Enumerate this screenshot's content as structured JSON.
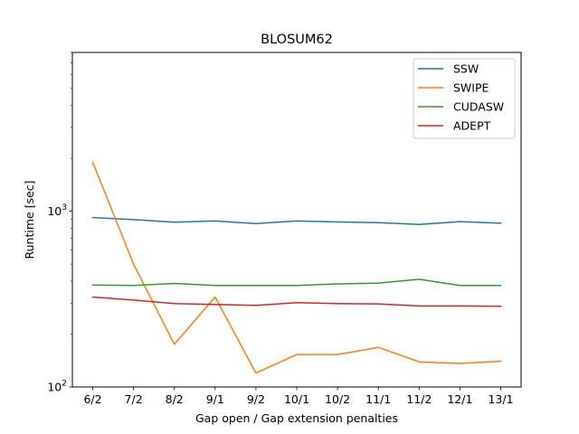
{
  "chart_data": {
    "type": "line",
    "title": "BLOSUM62",
    "xlabel": "Gap open / Gap extension penalties",
    "ylabel": "Runtime [sec]",
    "yscale": "log",
    "ylim": [
      100,
      8000
    ],
    "categories": [
      "6/2",
      "7/2",
      "8/2",
      "9/1",
      "9/2",
      "10/1",
      "10/2",
      "11/1",
      "11/2",
      "12/1",
      "13/1"
    ],
    "y_ticks": [
      {
        "value": 100,
        "base": "10",
        "exp": "2"
      },
      {
        "value": 1000,
        "base": "10",
        "exp": "3"
      }
    ],
    "legend_position": "upper right",
    "grid": false,
    "series": [
      {
        "name": "SSW",
        "color": "#1f77b4",
        "values": [
          920,
          895,
          865,
          880,
          850,
          880,
          868,
          860,
          840,
          872,
          855
        ]
      },
      {
        "name": "SWIPE",
        "color": "#ff7f0e",
        "values": [
          1900,
          500,
          175,
          325,
          120,
          153,
          153,
          168,
          139,
          136,
          140
        ]
      },
      {
        "name": "CUDASW",
        "color": "#2ca02c",
        "values": [
          380,
          378,
          388,
          378,
          378,
          378,
          386,
          390,
          410,
          378,
          378
        ]
      },
      {
        "name": "ADEPT",
        "color": "#d62728",
        "values": [
          325,
          312,
          298,
          295,
          291,
          302,
          298,
          297,
          289,
          289,
          288
        ]
      }
    ]
  }
}
